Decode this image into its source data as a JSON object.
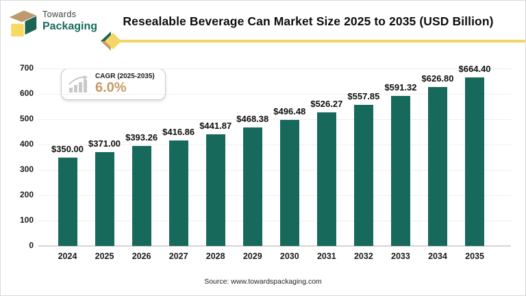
{
  "brand": {
    "line1": "Towards",
    "line2": "Packaging"
  },
  "header": {
    "title": "Resealable Beverage Can Market Size 2025 to 2035 (USD Billion)"
  },
  "cagr_badge": {
    "label": "CAGR (2025-2035)",
    "value": "6.0%"
  },
  "footer": {
    "source": "Source: www.towardspackaging.com"
  },
  "icons": {
    "logo": "packaging-box-cube-icon",
    "badge": "growth-bars-arrow-icon",
    "divider": "chevron-diamond-icon"
  },
  "colors": {
    "bar": "#17695B",
    "brand_green": "#17695B",
    "accent_yellow": "#F3D362",
    "accent_tan": "#BE9A6E",
    "cagr_value": "#C49A66",
    "gridline": "#efefef",
    "axis": "#d4d4d4"
  },
  "chart_data": {
    "type": "bar",
    "title": "Resealable Beverage Can Market Size 2025 to 2035 (USD Billion)",
    "categories": [
      "2024",
      "2025",
      "2026",
      "2027",
      "2028",
      "2029",
      "2030",
      "2031",
      "2032",
      "2033",
      "2034",
      "2035"
    ],
    "values": [
      350.0,
      371.0,
      393.26,
      416.86,
      441.87,
      468.38,
      496.48,
      526.27,
      557.85,
      591.32,
      626.8,
      664.4
    ],
    "data_labels": [
      "$350.00",
      "$371.00",
      "$393.26",
      "$416.86",
      "$441.87",
      "$468.38",
      "$496.48",
      "$526.27",
      "$557.85",
      "$591.32",
      "$626.80",
      "$664.40"
    ],
    "xlabel": "",
    "ylabel": "",
    "ylim": [
      0,
      700
    ],
    "yticks": [
      0,
      100,
      200,
      300,
      400,
      500,
      600,
      700
    ],
    "grid": true,
    "legend": false,
    "bar_color": "#17695B"
  }
}
